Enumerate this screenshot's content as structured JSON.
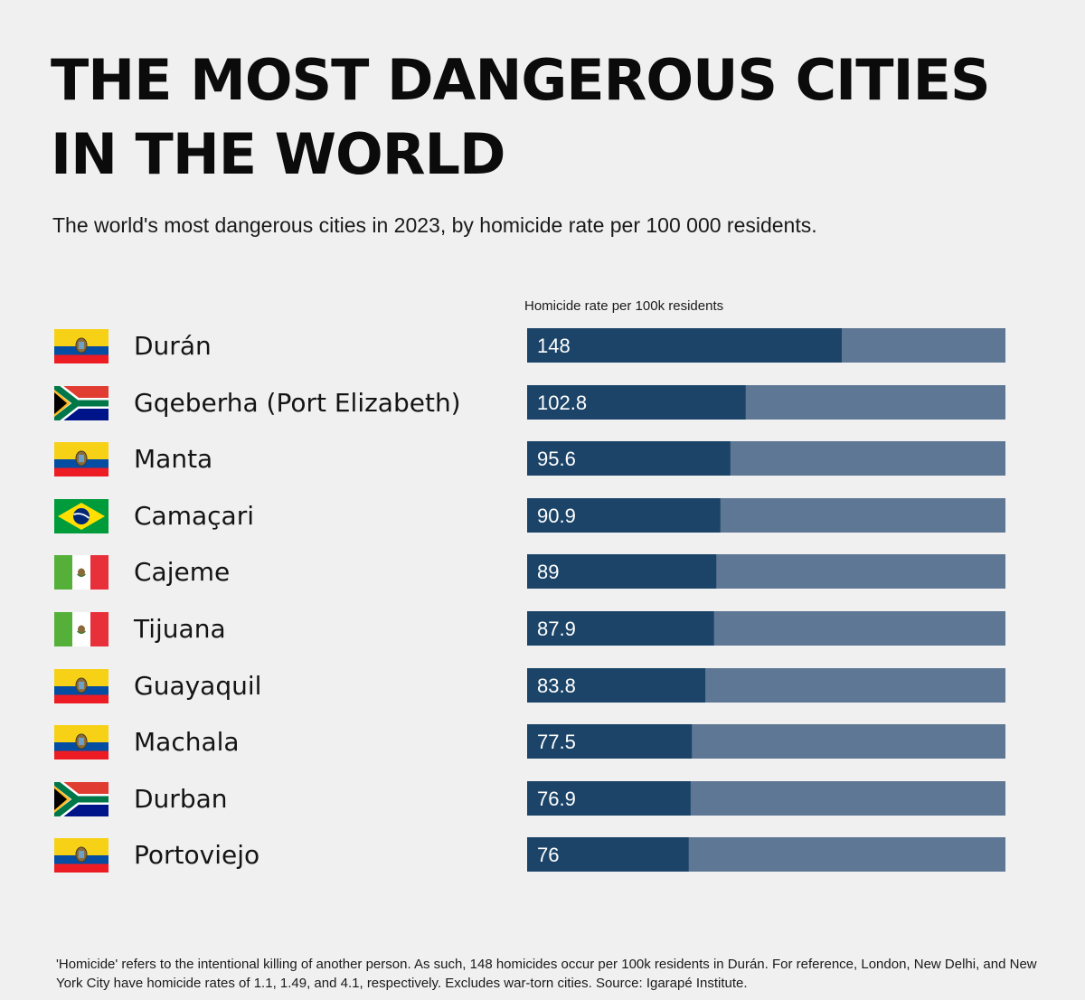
{
  "header": {
    "title_line1": "THE MOST DANGEROUS CITIES",
    "title_line2": "IN THE WORLD",
    "subtitle": "The world's most dangerous cities in 2023, by homicide rate per 100 000 residents."
  },
  "footnote": "'Homicide' refers to the intentional killing of another person. As such, 148 homicides occur per 100k residents in Durán. For reference, London, New Delhi, and New York City have homicide rates of 1.1, 1.49, and 4.1, respectively. Excludes war-torn cities. Source: Igarapé Institute.",
  "colors": {
    "bar_value": "#1b4468",
    "bar_track": "#5e7794",
    "label_text": "#ffffff",
    "background": "#f0f0f0"
  },
  "chart_data": {
    "type": "bar",
    "orientation": "horizontal",
    "title": "THE MOST DANGEROUS CITIES IN THE WORLD",
    "value_axis_label": "Homicide rate per 100k residents",
    "xlim": [
      0,
      225
    ],
    "grid": false,
    "rows": [
      {
        "city": "Durán",
        "country": "Ecuador",
        "flag": "ecuador-flag-icon",
        "value": 148,
        "label": "148"
      },
      {
        "city": "Gqeberha (Port Elizabeth)",
        "country": "South Africa",
        "flag": "south-africa-flag-icon",
        "value": 102.8,
        "label": "102.8"
      },
      {
        "city": "Manta",
        "country": "Ecuador",
        "flag": "ecuador-flag-icon",
        "value": 95.6,
        "label": "95.6"
      },
      {
        "city": "Camaçari",
        "country": "Brazil",
        "flag": "brazil-flag-icon",
        "value": 90.9,
        "label": "90.9"
      },
      {
        "city": "Cajeme",
        "country": "Mexico",
        "flag": "mexico-flag-icon",
        "value": 89,
        "label": "89"
      },
      {
        "city": "Tijuana",
        "country": "Mexico",
        "flag": "mexico-flag-icon",
        "value": 87.9,
        "label": "87.9"
      },
      {
        "city": "Guayaquil",
        "country": "Ecuador",
        "flag": "ecuador-flag-icon",
        "value": 83.8,
        "label": "83.8"
      },
      {
        "city": "Machala",
        "country": "Ecuador",
        "flag": "ecuador-flag-icon",
        "value": 77.5,
        "label": "77.5"
      },
      {
        "city": "Durban",
        "country": "South Africa",
        "flag": "south-africa-flag-icon",
        "value": 76.9,
        "label": "76.9"
      },
      {
        "city": "Portoviejo",
        "country": "Ecuador",
        "flag": "ecuador-flag-icon",
        "value": 76,
        "label": "76"
      }
    ]
  }
}
